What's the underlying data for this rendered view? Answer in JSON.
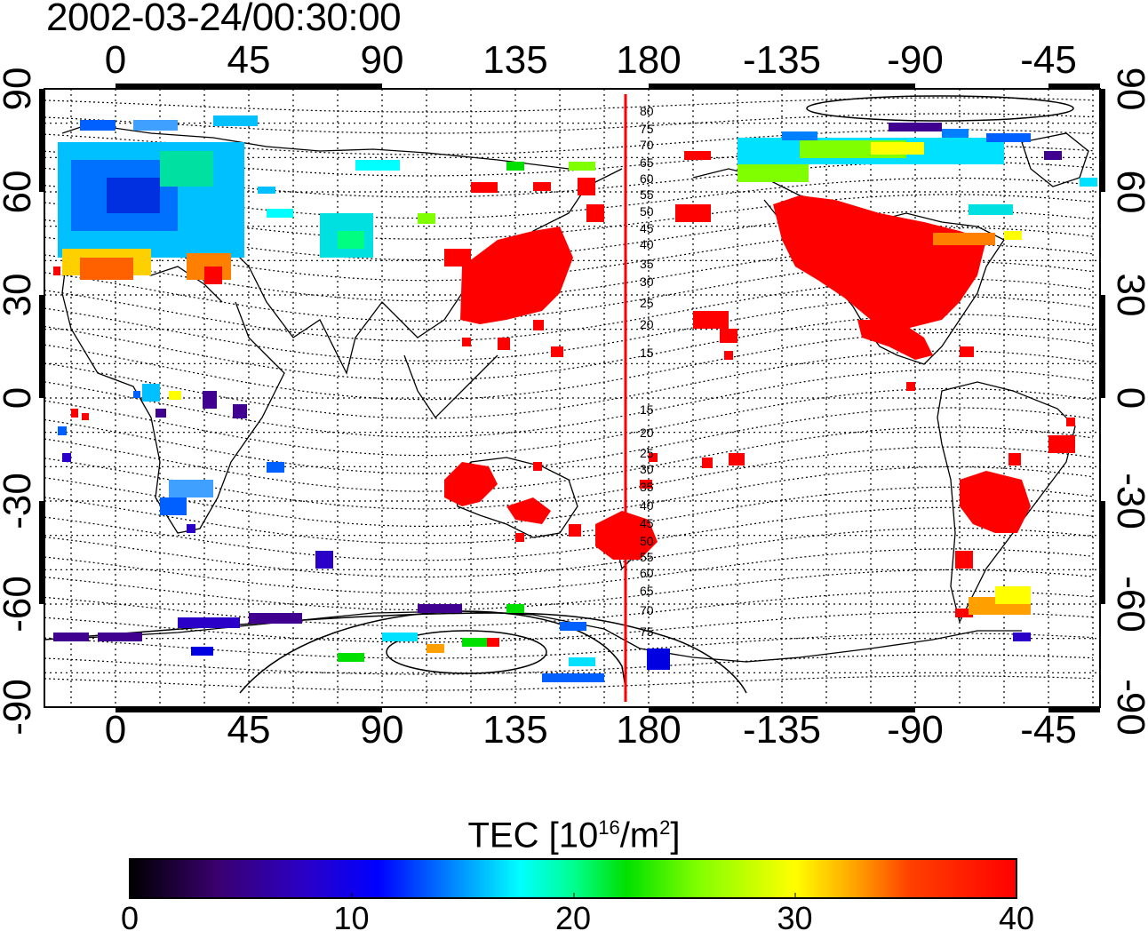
{
  "title": "2002-03-24/00:30:00",
  "lon_ticks_top": [
    "0",
    "45",
    "90",
    "135",
    "180",
    "-135",
    "-90",
    "-45"
  ],
  "lon_ticks_bottom": [
    "0",
    "45",
    "90",
    "135",
    "180",
    "-135",
    "-90",
    "-45"
  ],
  "lat_ticks_left": [
    "90",
    "60",
    "30",
    "0",
    "-30",
    "-60",
    "-90"
  ],
  "lat_ticks_right": [
    "90",
    "60",
    "30",
    "0",
    "-30",
    "-60",
    "-90"
  ],
  "magnetic_lat_labels_north": [
    "80",
    "75",
    "70",
    "65",
    "60",
    "55",
    "50",
    "45",
    "40",
    "35",
    "30",
    "25",
    "20",
    "15"
  ],
  "magnetic_lat_labels_south": [
    "15",
    "20",
    "25",
    "30",
    "35",
    "40",
    "45",
    "50",
    "55",
    "60",
    "65",
    "70",
    "75"
  ],
  "colorbar": {
    "label_prefix": "TEC  [10",
    "label_exp1": "16",
    "label_mid": "/m",
    "label_exp2": "2",
    "label_suffix": "]",
    "min": 0,
    "max": 40,
    "ticks": [
      "0",
      "10",
      "20",
      "30",
      "40"
    ],
    "colors": [
      "#000000",
      "#3a0070",
      "#2a00d0",
      "#0000ff",
      "#0080ff",
      "#00ffff",
      "#00ff80",
      "#00d000",
      "#80ff00",
      "#ffff00",
      "#ffa000",
      "#ff4000",
      "#ff0000"
    ]
  },
  "terminator_longitude": 172.5,
  "legend_colors": {
    "red": "#ff0000",
    "orange": "#ff8000",
    "yellow": "#ffff00",
    "green": "#00e000",
    "cyan": "#00e0ff",
    "blue": "#0060ff",
    "darkblue": "#0000e0",
    "purple": "#400090"
  }
}
